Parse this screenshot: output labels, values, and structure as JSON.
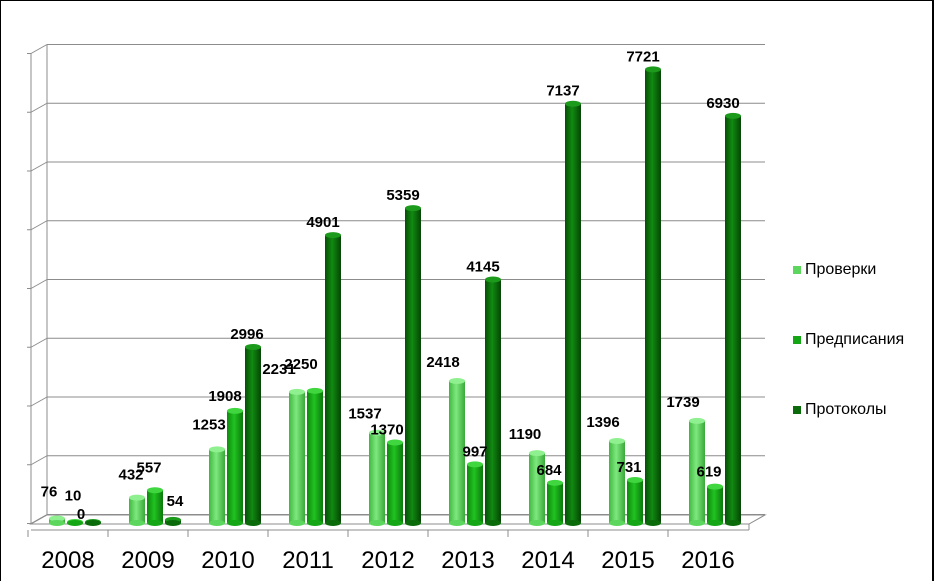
{
  "chart_data": {
    "type": "bar",
    "title": "",
    "xlabel": "",
    "ylabel": "",
    "ylim": [
      0,
      8000
    ],
    "grid": true,
    "legend_position": "right",
    "categories": [
      "2008",
      "2009",
      "2010",
      "2011",
      "2012",
      "2013",
      "2014",
      "2015",
      "2016"
    ],
    "series": [
      {
        "name": "Проверки",
        "color": "#5cd65c",
        "values": [
          76,
          432,
          1253,
          2231,
          1537,
          2418,
          1190,
          1396,
          1739
        ]
      },
      {
        "name": "Предписания",
        "color": "#14a614",
        "values": [
          10,
          557,
          1908,
          2250,
          1370,
          997,
          684,
          731,
          619
        ]
      },
      {
        "name": "Протоколы",
        "color": "#0b6b0b",
        "values": [
          0,
          54,
          2996,
          4901,
          5359,
          4145,
          7137,
          7721,
          6930
        ]
      }
    ]
  }
}
